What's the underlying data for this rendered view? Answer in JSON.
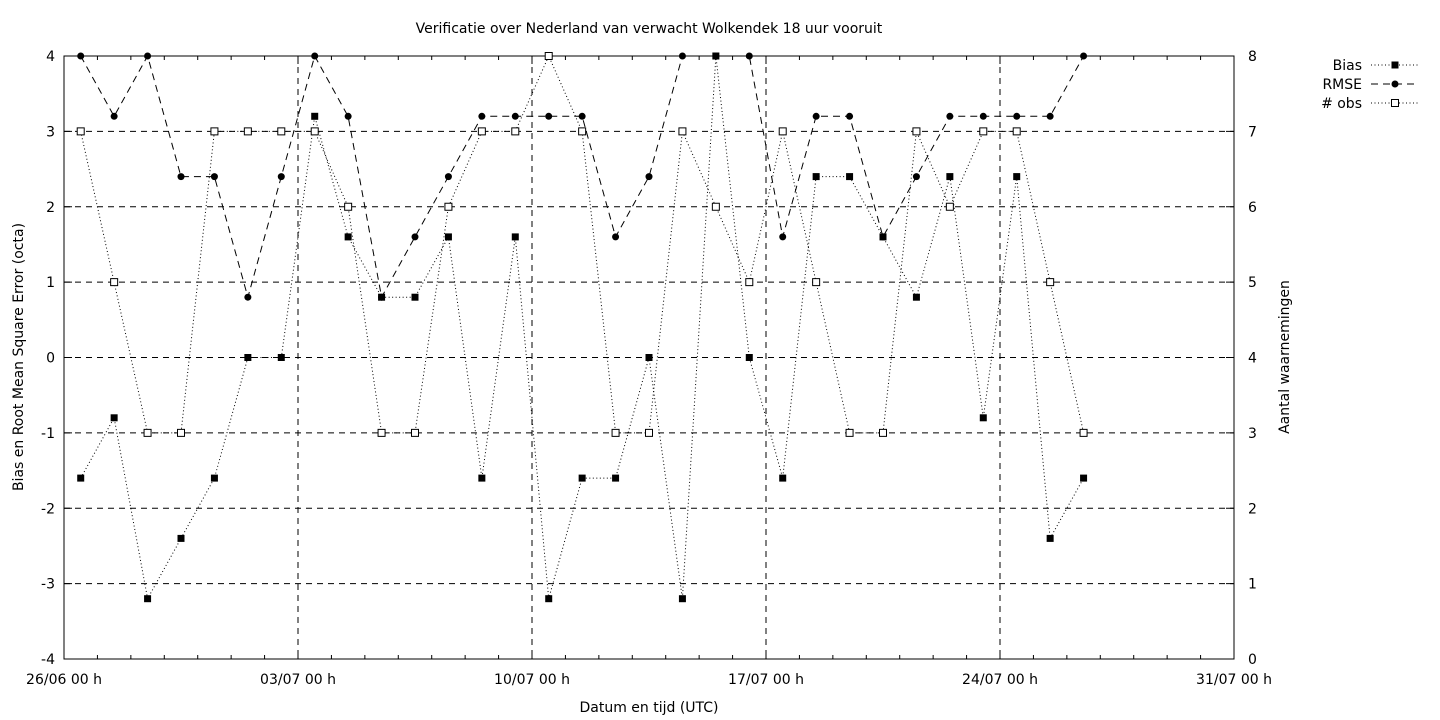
{
  "chart_data": {
    "type": "scatter",
    "title": "Verificatie over Nederland van verwacht Wolkendek 18 uur vooruit",
    "xlabel": "Datum en tijd (UTC)",
    "ylabel": "Bias en Root Mean Square Error (octa)",
    "y2label": "Aantal waarnemingen",
    "x_tick_labels": [
      "26/06 00 h",
      "03/07 00 h",
      "10/07 00 h",
      "17/07 00 h",
      "24/07 00 h",
      "31/07 00 h"
    ],
    "x_range_days": [
      0,
      35
    ],
    "x_major_tick_days": [
      0,
      7,
      14,
      21,
      28,
      35
    ],
    "ylim": [
      -4,
      4
    ],
    "y_ticks": [
      "-4",
      "-3",
      "-2",
      "-1",
      "0",
      "1",
      "2",
      "3",
      "4"
    ],
    "y2lim": [
      0,
      8
    ],
    "y2_ticks": [
      "0",
      "1",
      "2",
      "3",
      "4",
      "5",
      "6",
      "7",
      "8"
    ],
    "grid": true,
    "legend_position": "top-right outside",
    "series": [
      {
        "name": "Bias",
        "axis": "y",
        "marker": "filled-square",
        "line": "dotted",
        "x_days": [
          0.5,
          1.5,
          2.5,
          3.5,
          4.5,
          5.5,
          6.5,
          7.5,
          8.5,
          9.5,
          10.5,
          11.5,
          12.5,
          13.5,
          14.5,
          15.5,
          16.5,
          17.5,
          18.5,
          19.5,
          20.5,
          21.5,
          22.5,
          23.5,
          24.5,
          25.5,
          26.5,
          27.5,
          28.5,
          29.5,
          30.5
        ],
        "values": [
          -1.6,
          -0.8,
          -3.2,
          -2.4,
          -1.6,
          0.0,
          0.0,
          3.2,
          1.6,
          0.8,
          0.8,
          1.6,
          -1.6,
          1.6,
          -3.2,
          -1.6,
          -1.6,
          0.0,
          -3.2,
          4.0,
          0.0,
          -1.6,
          2.4,
          2.4,
          1.6,
          0.8,
          2.4,
          -0.8,
          2.4,
          -2.4,
          -1.6
        ]
      },
      {
        "name": "RMSE",
        "axis": "y",
        "marker": "filled-circle",
        "line": "dashed",
        "x_days": [
          0.5,
          1.5,
          2.5,
          3.5,
          4.5,
          5.5,
          6.5,
          7.5,
          8.5,
          9.5,
          10.5,
          11.5,
          12.5,
          13.5,
          14.5,
          15.5,
          16.5,
          17.5,
          18.5,
          19.5,
          20.5,
          21.5,
          22.5,
          23.5,
          24.5,
          25.5,
          26.5,
          27.5,
          28.5,
          29.5,
          30.5
        ],
        "values": [
          4.0,
          3.2,
          4.0,
          2.4,
          2.4,
          0.8,
          2.4,
          4.0,
          3.2,
          0.8,
          1.6,
          2.4,
          3.2,
          3.2,
          3.2,
          3.2,
          1.6,
          2.4,
          4.0,
          4.0,
          4.0,
          1.6,
          3.2,
          3.2,
          1.6,
          2.4,
          3.2,
          3.2,
          3.2,
          3.2,
          4.0
        ]
      },
      {
        "name": "# obs",
        "axis": "y2",
        "marker": "open-square",
        "line": "dotted",
        "x_days": [
          0.5,
          1.5,
          2.5,
          3.5,
          4.5,
          5.5,
          6.5,
          7.5,
          8.5,
          9.5,
          10.5,
          11.5,
          12.5,
          13.5,
          14.5,
          15.5,
          16.5,
          17.5,
          18.5,
          19.5,
          20.5,
          21.5,
          22.5,
          23.5,
          24.5,
          25.5,
          26.5,
          27.5,
          28.5,
          29.5,
          30.5
        ],
        "values": [
          7,
          5,
          3,
          3,
          7,
          7,
          7,
          7,
          6,
          3,
          3,
          6,
          7,
          7,
          8,
          7,
          3,
          3,
          7,
          6,
          5,
          7,
          5,
          3,
          3,
          7,
          6,
          7,
          7,
          5,
          3
        ]
      }
    ]
  }
}
